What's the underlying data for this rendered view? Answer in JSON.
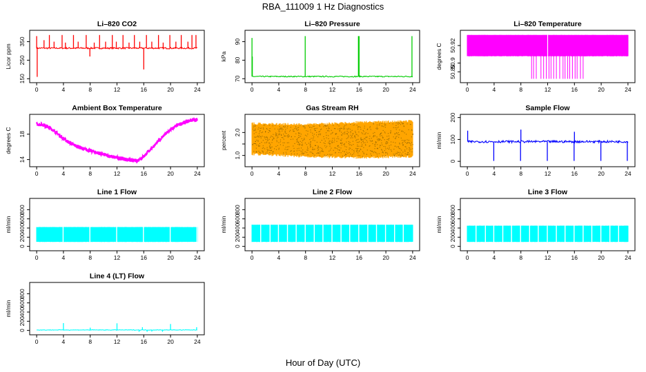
{
  "figure": {
    "title": "RBA_111009  1 Hz Diagnostics",
    "xlabel": "Hour of Day (UTC)"
  },
  "chart_data": [
    {
      "type": "line",
      "title": "Li–820 CO2",
      "ylabel": "Licor ppm",
      "color": "#ff0000",
      "xlim": [
        0,
        24
      ],
      "ylim": [
        140,
        400
      ],
      "xticks": [
        0,
        4,
        8,
        12,
        16,
        20,
        24
      ],
      "yticks": [
        150,
        250,
        350
      ],
      "baseline": 315,
      "noise": 4,
      "spikes": [
        {
          "x": 0.0,
          "y": 380
        },
        {
          "x": 0.08,
          "y": 160
        },
        {
          "x": 1.1,
          "y": 358
        },
        {
          "x": 1.9,
          "y": 386
        },
        {
          "x": 2.6,
          "y": 350
        },
        {
          "x": 3.8,
          "y": 386
        },
        {
          "x": 4.3,
          "y": 345
        },
        {
          "x": 5.5,
          "y": 386
        },
        {
          "x": 6.2,
          "y": 350
        },
        {
          "x": 7.4,
          "y": 386
        },
        {
          "x": 7.95,
          "y": 270
        },
        {
          "x": 8.6,
          "y": 345
        },
        {
          "x": 9.4,
          "y": 386
        },
        {
          "x": 10.3,
          "y": 350
        },
        {
          "x": 11.3,
          "y": 386
        },
        {
          "x": 11.9,
          "y": 350
        },
        {
          "x": 12.9,
          "y": 386
        },
        {
          "x": 13.8,
          "y": 345
        },
        {
          "x": 14.6,
          "y": 386
        },
        {
          "x": 15.4,
          "y": 350
        },
        {
          "x": 16.0,
          "y": 200
        },
        {
          "x": 16.4,
          "y": 386
        },
        {
          "x": 17.2,
          "y": 350
        },
        {
          "x": 18.2,
          "y": 386
        },
        {
          "x": 18.9,
          "y": 345
        },
        {
          "x": 19.9,
          "y": 386
        },
        {
          "x": 20.8,
          "y": 350
        },
        {
          "x": 21.6,
          "y": 386
        },
        {
          "x": 22.6,
          "y": 350
        },
        {
          "x": 23.2,
          "y": 386
        },
        {
          "x": 23.8,
          "y": 386
        }
      ]
    },
    {
      "type": "line",
      "title": "Li–820 Pressure",
      "ylabel": "kPa",
      "color": "#00cc00",
      "xlim": [
        0,
        24
      ],
      "ylim": [
        69,
        95
      ],
      "xticks": [
        0,
        4,
        8,
        12,
        16,
        20,
        24
      ],
      "yticks": [
        70,
        80,
        90
      ],
      "baseline": 71.2,
      "noise": 0.3,
      "spikes": [
        {
          "x": 0.0,
          "y": 92
        },
        {
          "x": 0.05,
          "y": 82
        },
        {
          "x": 7.95,
          "y": 93
        },
        {
          "x": 15.9,
          "y": 93
        },
        {
          "x": 16.0,
          "y": 93
        },
        {
          "x": 23.9,
          "y": 93
        }
      ]
    },
    {
      "type": "band",
      "title": "Li–820 Temperature",
      "ylabel": "degrees C",
      "color": "#ff00ff",
      "xlim": [
        0,
        24
      ],
      "ylim": [
        50.88,
        50.935
      ],
      "xticks": [
        0,
        4,
        8,
        12,
        16,
        20,
        24
      ],
      "yticks": [
        50.89,
        50.9,
        50.92
      ],
      "ytick_labels": [
        "50.89",
        "50.9",
        "50.92"
      ],
      "band_low": 50.908,
      "band_high": 50.932,
      "gap_x": 12.0,
      "drops": [
        {
          "x": 9.6,
          "y": 50.882
        },
        {
          "x": 9.9,
          "y": 50.882
        },
        {
          "x": 10.3,
          "y": 50.882
        },
        {
          "x": 11.0,
          "y": 50.882
        },
        {
          "x": 11.4,
          "y": 50.882
        },
        {
          "x": 11.8,
          "y": 50.882
        },
        {
          "x": 12.2,
          "y": 50.882
        },
        {
          "x": 12.5,
          "y": 50.882
        },
        {
          "x": 12.9,
          "y": 50.882
        },
        {
          "x": 13.3,
          "y": 50.882
        },
        {
          "x": 13.8,
          "y": 50.882
        },
        {
          "x": 14.3,
          "y": 50.882
        },
        {
          "x": 14.6,
          "y": 50.882
        },
        {
          "x": 15.0,
          "y": 50.882
        },
        {
          "x": 15.3,
          "y": 50.882
        },
        {
          "x": 15.7,
          "y": 50.882
        },
        {
          "x": 16.1,
          "y": 50.882
        },
        {
          "x": 16.4,
          "y": 50.882
        },
        {
          "x": 16.9,
          "y": 50.882
        },
        {
          "x": 17.3,
          "y": 50.882
        }
      ]
    },
    {
      "type": "line",
      "title": "Ambient Box Temperature",
      "ylabel": "degrees C",
      "color": "#ff00ff",
      "xlim": [
        0,
        24
      ],
      "ylim": [
        13.2,
        20.8
      ],
      "xticks": [
        0,
        4,
        8,
        12,
        16,
        20,
        24
      ],
      "yticks": [
        14,
        18
      ],
      "bandwidth": 0.6,
      "curve": [
        [
          0,
          19.6
        ],
        [
          1,
          19.5
        ],
        [
          2,
          19.0
        ],
        [
          3,
          18.2
        ],
        [
          4,
          17.3
        ],
        [
          5,
          16.6
        ],
        [
          6,
          16.1
        ],
        [
          7,
          15.7
        ],
        [
          8,
          15.4
        ],
        [
          9,
          15.1
        ],
        [
          10,
          14.8
        ],
        [
          11,
          14.5
        ],
        [
          12,
          14.3
        ],
        [
          13,
          14.1
        ],
        [
          14,
          13.9
        ],
        [
          15,
          13.8
        ],
        [
          16,
          14.5
        ],
        [
          17,
          15.6
        ],
        [
          18,
          16.7
        ],
        [
          19,
          17.8
        ],
        [
          20,
          18.7
        ],
        [
          21,
          19.4
        ],
        [
          22,
          19.8
        ],
        [
          23,
          20.2
        ],
        [
          24,
          20.3
        ]
      ]
    },
    {
      "type": "band",
      "title": "Gas Stream RH",
      "ylabel": "percent",
      "color": "#ffa500",
      "dot_color": "#9a6a00",
      "xlim": [
        0,
        24
      ],
      "ylim": [
        0.6,
        2.7
      ],
      "xticks": [
        0,
        4,
        8,
        12,
        16,
        20,
        24
      ],
      "yticks": [
        1.0,
        1.5,
        2.0
      ],
      "ytick_labels": [
        "1.0",
        "",
        "2.0"
      ],
      "band_low_curve": [
        [
          0,
          1.1
        ],
        [
          8,
          1.0
        ],
        [
          16,
          0.95
        ],
        [
          24,
          1.0
        ]
      ],
      "band_high_curve": [
        [
          0,
          2.35
        ],
        [
          8,
          2.3
        ],
        [
          16,
          2.4
        ],
        [
          24,
          2.45
        ]
      ]
    },
    {
      "type": "line",
      "title": "Sample Flow",
      "ylabel": "ml/min",
      "color": "#0000ff",
      "xlim": [
        0,
        24
      ],
      "ylim": [
        -15,
        205
      ],
      "xticks": [
        0,
        4,
        8,
        12,
        16,
        20,
        24
      ],
      "yticks": [
        0,
        100,
        200
      ],
      "baseline": 90,
      "noise": 5,
      "spikes": [
        {
          "x": 0.05,
          "y": 140
        },
        {
          "x": 3.95,
          "y": 2
        },
        {
          "x": 7.95,
          "y": 2
        },
        {
          "x": 8.0,
          "y": 145
        },
        {
          "x": 11.95,
          "y": 2
        },
        {
          "x": 15.95,
          "y": 2
        },
        {
          "x": 16.0,
          "y": 135
        },
        {
          "x": 19.95,
          "y": 2
        },
        {
          "x": 23.9,
          "y": 2
        }
      ]
    },
    {
      "type": "band",
      "title": "Line 1 Flow",
      "ylabel": "ml/min",
      "color": "#00ffff",
      "xlim": [
        0,
        24
      ],
      "ylim": [
        -50,
        1000
      ],
      "xticks": [
        0,
        4,
        8,
        12,
        16,
        20,
        24
      ],
      "yticks": [
        0,
        200,
        400,
        600,
        800
      ],
      "band_low": 100,
      "band_high": 420,
      "gaps": [
        3.95,
        7.95,
        11.95,
        15.95,
        19.95,
        23.95
      ]
    },
    {
      "type": "band",
      "title": "Line 2 Flow",
      "ylabel": "ml/min",
      "color": "#00ffff",
      "xlim": [
        0,
        24
      ],
      "ylim": [
        -50,
        1000
      ],
      "xticks": [
        0,
        4,
        8,
        12,
        16,
        20,
        24
      ],
      "yticks": [
        0,
        200,
        400,
        600,
        800
      ],
      "band_low": 100,
      "band_high": 470,
      "gaps": [
        1.3,
        2.7,
        3.95,
        5.3,
        6.6,
        7.95,
        9.3,
        10.6,
        11.95,
        13.3,
        14.6,
        15.95,
        17.3,
        18.6,
        19.95,
        21.3,
        22.6
      ]
    },
    {
      "type": "band",
      "title": "Line 3 Flow",
      "ylabel": "ml/min",
      "color": "#00ffff",
      "xlim": [
        0,
        24
      ],
      "ylim": [
        -50,
        1000
      ],
      "xticks": [
        0,
        4,
        8,
        12,
        16,
        20,
        24
      ],
      "yticks": [
        0,
        200,
        400,
        600,
        800
      ],
      "band_low": 100,
      "band_high": 450,
      "gaps": [
        1.3,
        2.7,
        3.95,
        5.3,
        6.6,
        7.95,
        9.3,
        10.6,
        11.95,
        13.3,
        14.6,
        15.95,
        17.3,
        18.6,
        19.95,
        21.3,
        22.6
      ]
    },
    {
      "type": "line",
      "title": "Line 4 (LT) Flow",
      "ylabel": "ml/min",
      "color": "#00ffff",
      "xlim": [
        0,
        24
      ],
      "ylim": [
        -50,
        1000
      ],
      "xticks": [
        0,
        4,
        8,
        12,
        16,
        20,
        24
      ],
      "yticks": [
        0,
        200,
        400,
        600,
        800
      ],
      "baseline": 10,
      "noise": 6,
      "spikes": [
        {
          "x": 4.0,
          "y": 160
        },
        {
          "x": 8.0,
          "y": 60
        },
        {
          "x": 12.0,
          "y": 155
        },
        {
          "x": 15.3,
          "y": -30
        },
        {
          "x": 15.8,
          "y": 70
        },
        {
          "x": 16.5,
          "y": -30
        },
        {
          "x": 17.2,
          "y": -25
        },
        {
          "x": 18.8,
          "y": -30
        },
        {
          "x": 20.0,
          "y": 140
        },
        {
          "x": 23.9,
          "y": 70
        }
      ]
    }
  ]
}
